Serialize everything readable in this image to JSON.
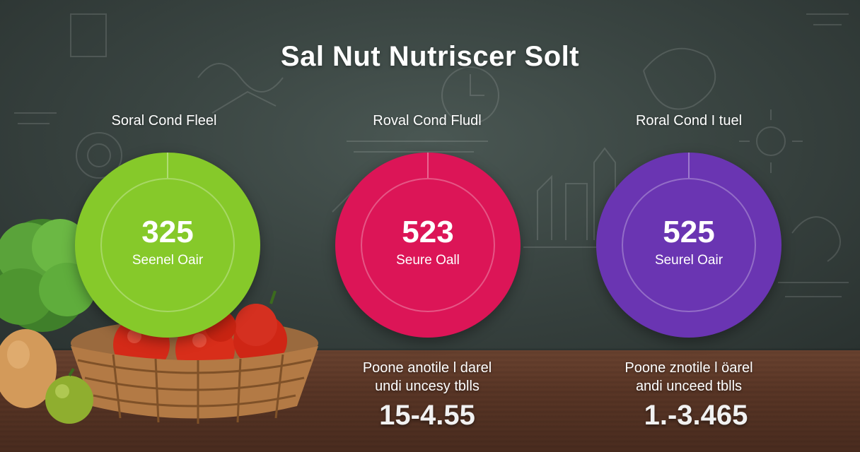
{
  "title": "Sal Nut Nutriscer Solt",
  "panels": [
    {
      "label": "Soral Cond Fleel",
      "value": "325",
      "sub": "Seenel Oair",
      "color": "#86c92a"
    },
    {
      "label": "Roval Cond Fludl",
      "value": "523",
      "sub": "Seure Oall",
      "color": "#dc1557"
    },
    {
      "label": "Roral Cond I tuel",
      "value": "525",
      "sub": "Seurel Oair",
      "color": "#6a35b2"
    }
  ],
  "notes": [
    {
      "line1": "Poone anotile l darel",
      "line2": "undi uncesy tblls",
      "range": "15-4.55"
    },
    {
      "line1": "Poone znotile l öarel",
      "line2": "andi unceed tblls",
      "range": "1.-3.465"
    }
  ],
  "colors": {
    "chalkboard": "#3a4542",
    "table_wood": "#5a3626"
  },
  "icons": [
    "chalk-doodles-decoration",
    "vegetable-basket-decoration"
  ]
}
